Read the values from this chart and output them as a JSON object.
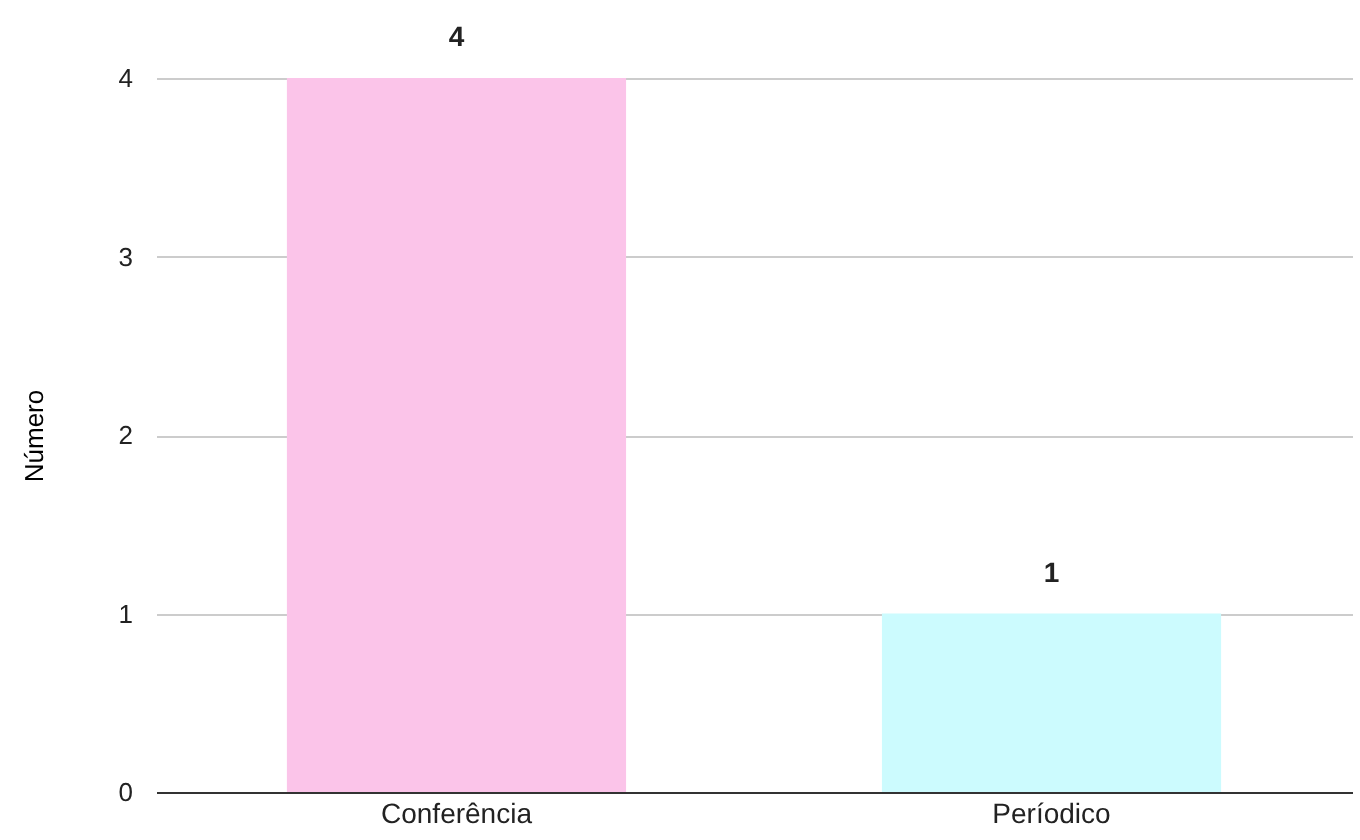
{
  "chart_data": {
    "type": "bar",
    "ylabel": "Número",
    "categories": [
      "Conferência",
      "Períodico"
    ],
    "values": [
      4,
      1
    ],
    "colors": [
      "#fbc4e9",
      "#ccfbfe"
    ],
    "ylim": [
      0,
      4
    ],
    "yticks": [
      0,
      1,
      2,
      3,
      4
    ],
    "grid": "y",
    "data_labels": true
  }
}
